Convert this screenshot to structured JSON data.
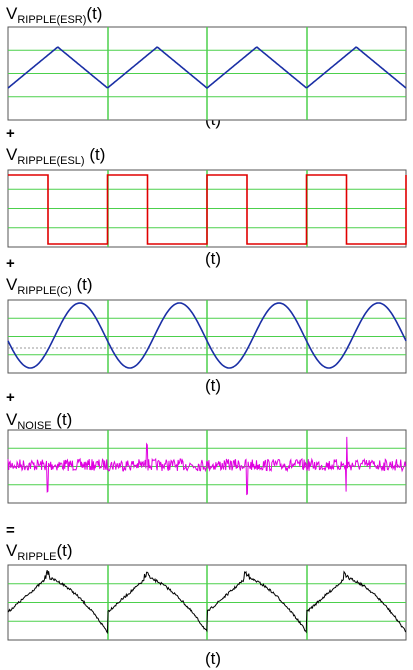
{
  "panels": [
    {
      "label": {
        "main": "V",
        "sub": "RIPPLE(ESR)",
        "suffix": "(t)"
      },
      "axis_label": "(t)"
    },
    {
      "label": {
        "main": "V",
        "sub": "RIPPLE(ESL)",
        "suffix": " (t)"
      },
      "axis_label": "(t)"
    },
    {
      "label": {
        "main": "V",
        "sub": "RIPPLE(C)",
        "suffix": " (t)"
      },
      "axis_label": "(t)"
    },
    {
      "label": {
        "main": "V",
        "sub": "NOISE",
        "suffix": " (t)"
      }
    },
    {
      "label": {
        "main": "V",
        "sub": "RIPPLE",
        "suffix": "(t)"
      },
      "axis_label": "(t)"
    }
  ],
  "operators": [
    "+",
    "+",
    "+",
    "="
  ]
}
